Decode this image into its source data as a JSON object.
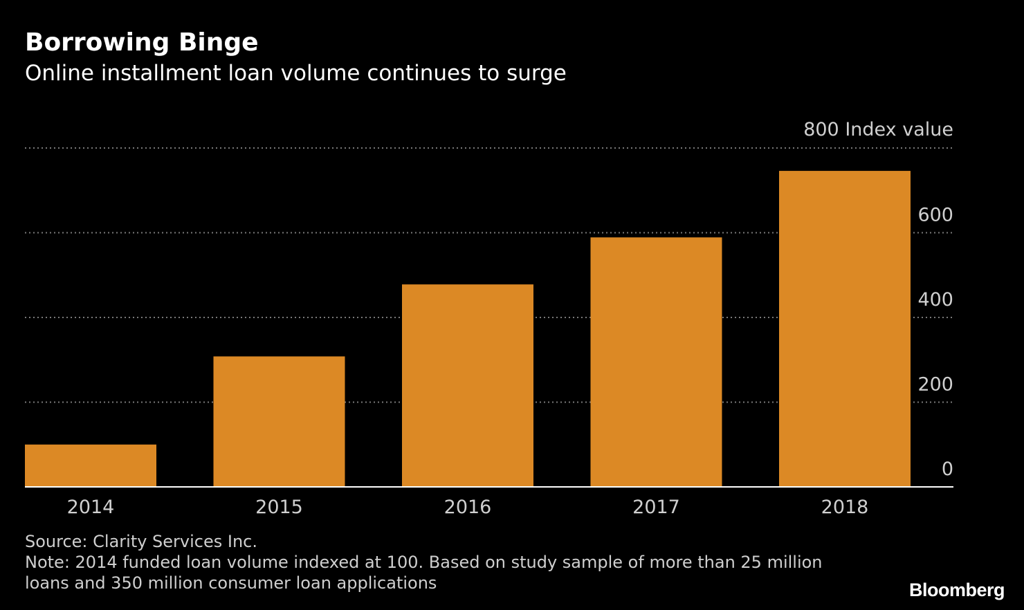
{
  "header": {
    "title": "Borrowing Binge",
    "subtitle": "Online installment loan volume continues to surge"
  },
  "chart_data": {
    "type": "bar",
    "categories": [
      "2014",
      "2015",
      "2016",
      "2017",
      "2018"
    ],
    "values": [
      100,
      308,
      478,
      589,
      746
    ],
    "ylabel": "Index value",
    "ylim": [
      0,
      800
    ],
    "yticks": [
      0,
      200,
      400,
      600,
      800
    ],
    "y_axis_side": "right",
    "grid": true,
    "grid_style": "dotted",
    "bar_color": "#DC8925",
    "grid_color": "#7a7a7a",
    "background": "#000000"
  },
  "footer": {
    "source": "Source: Clarity Services Inc.",
    "note_line1": "Note: 2014 funded loan volume indexed at 100. Based on study sample of more than 25 million",
    "note_line2": "loans and 350 million consumer loan applications"
  },
  "brand": {
    "name": "Bloomberg"
  }
}
